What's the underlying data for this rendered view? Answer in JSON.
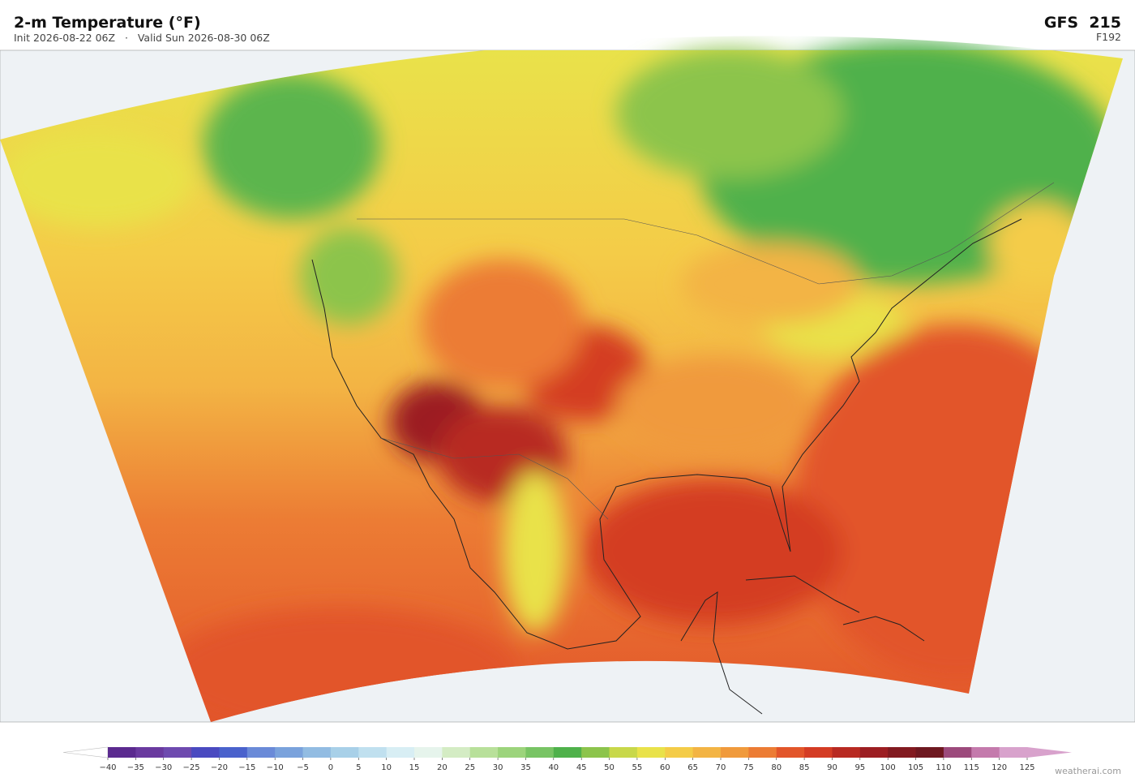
{
  "header": {
    "title": "2-m Temperature  (°F)",
    "subtitle": "Init 2026-08-22 06Z   ·   Valid Sun 2026-08-30 06Z",
    "model": "GFS  215",
    "forecast_hour": "F192"
  },
  "colorbar": {
    "ticks": [
      {
        "value": -40,
        "label": "−40"
      },
      {
        "value": -35,
        "label": "−35"
      },
      {
        "value": -30,
        "label": "−30"
      },
      {
        "value": -25,
        "label": "−25"
      },
      {
        "value": -20,
        "label": "−20"
      },
      {
        "value": -15,
        "label": "−15"
      },
      {
        "value": -10,
        "label": "−10"
      },
      {
        "value": -5,
        "label": "−5"
      },
      0,
      5,
      10,
      15,
      20,
      25,
      30,
      35,
      40,
      45,
      50,
      55,
      60,
      65,
      70,
      75,
      80,
      85,
      90,
      95,
      100,
      105,
      110,
      115,
      120,
      125
    ],
    "colors": [
      "#5b2a8f",
      "#6a3a9f",
      "#6e4aaf",
      "#4a4ac0",
      "#4a62cc",
      "#6a8ad8",
      "#7aa2dc",
      "#92bce2",
      "#a8d0e8",
      "#c0e0ef",
      "#d8eef4",
      "#e6f4ec",
      "#d4ecc4",
      "#b8e09a",
      "#9cd47c",
      "#78c464",
      "#4fb14b",
      "#8cc44c",
      "#c8d84a",
      "#e9e24a",
      "#f4cc48",
      "#f3b444",
      "#f09a3c",
      "#ec7c34",
      "#e2552a",
      "#d43c24",
      "#b82a22",
      "#9c1e22",
      "#821a20",
      "#6e1820",
      "#9c4a7c",
      "#c47aac",
      "#d8a2cc"
    ],
    "under_color": "#ffffff",
    "over_color": "#d8a2cc"
  },
  "footer": "weatherai.com"
}
